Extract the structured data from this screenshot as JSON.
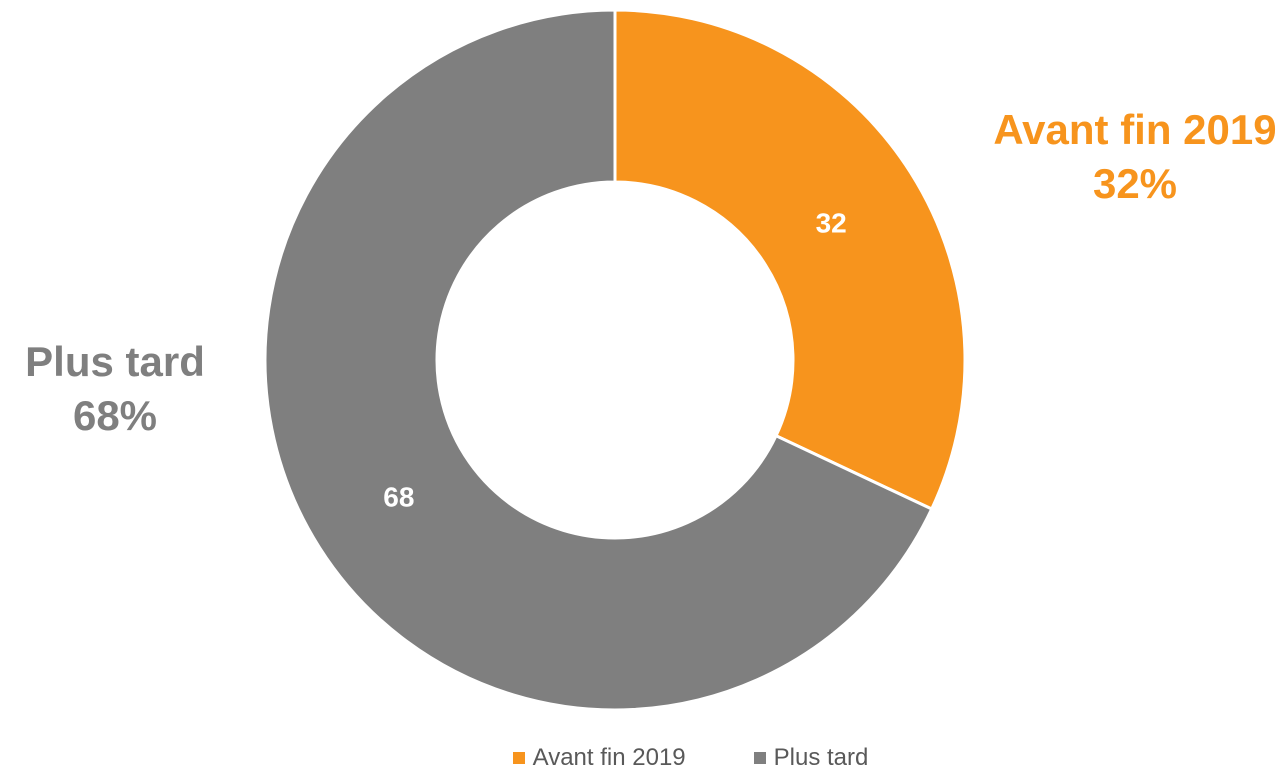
{
  "chart_data": {
    "type": "pie",
    "variant": "donut",
    "categories": [
      "Avant fin 2019",
      "Plus tard"
    ],
    "values": [
      32,
      68
    ],
    "percent_labels": [
      "32%",
      "68%"
    ],
    "colors": [
      "#f7941d",
      "#7f7f7f"
    ],
    "legend_placement": "bottom",
    "title": ""
  }
}
